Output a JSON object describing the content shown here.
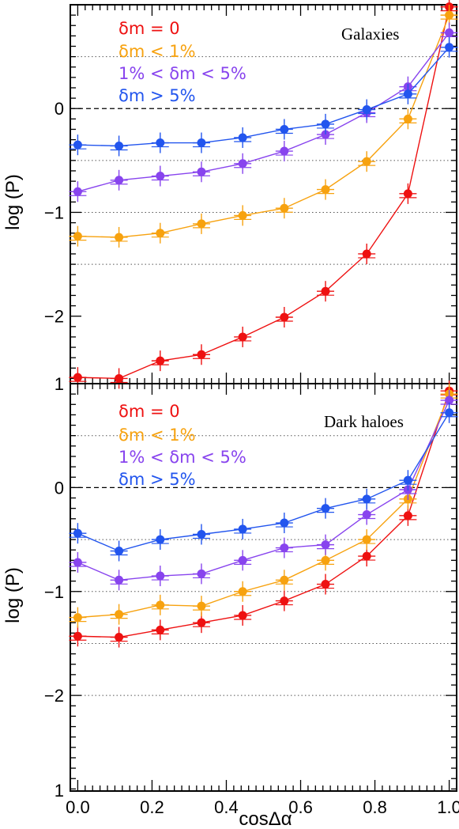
{
  "chart_data": [
    {
      "type": "line",
      "title": "Galaxies",
      "xlabel": "cosΔα",
      "ylabel": "log (P)",
      "xlim": [
        -0.02,
        1.02
      ],
      "ylim": [
        -2.65,
        1.0
      ],
      "yticks": [
        -2,
        -1,
        0
      ],
      "reference_lines": {
        "dashed": [
          0
        ],
        "dotted": [
          0.5,
          -0.5,
          -1,
          -1.5
        ]
      },
      "legend_position": "top-left",
      "x": [
        0.0,
        0.111,
        0.222,
        0.333,
        0.444,
        0.556,
        0.667,
        0.778,
        0.889,
        1.0
      ],
      "series": [
        {
          "name": "δm = 0",
          "color": "#ee1111",
          "values": [
            -2.59,
            -2.6,
            -2.43,
            -2.37,
            -2.2,
            -2.01,
            -1.76,
            -1.4,
            -0.82,
            0.98
          ]
        },
        {
          "name": "δm < 1%",
          "color": "#f7a20f",
          "values": [
            -1.23,
            -1.24,
            -1.2,
            -1.11,
            -1.03,
            -0.96,
            -0.78,
            -0.51,
            -0.1,
            0.9
          ]
        },
        {
          "name": "1% < δm < 5%",
          "color": "#8844ee",
          "values": [
            -0.8,
            -0.69,
            -0.65,
            -0.61,
            -0.53,
            -0.41,
            -0.25,
            -0.04,
            0.21,
            0.73
          ]
        },
        {
          "name": "δm > 5%",
          "color": "#2255ee",
          "values": [
            -0.35,
            -0.36,
            -0.33,
            -0.33,
            -0.28,
            -0.2,
            -0.15,
            -0.01,
            0.14,
            0.59
          ]
        }
      ]
    },
    {
      "type": "line",
      "title": "Dark haloes",
      "xlabel": "cosΔα",
      "ylabel": "log (P)",
      "xlim": [
        -0.02,
        1.02
      ],
      "ylim": [
        -2.92,
        1.0
      ],
      "yticks": [
        -2,
        -1,
        0,
        1
      ],
      "reference_lines": {
        "dashed": [
          0
        ],
        "dotted": [
          0.5,
          -0.5,
          -1,
          -1.5,
          -2
        ]
      },
      "legend_position": "top-left",
      "x": [
        0.0,
        0.111,
        0.222,
        0.333,
        0.444,
        0.556,
        0.667,
        0.778,
        0.889,
        1.0
      ],
      "series": [
        {
          "name": "δm = 0",
          "color": "#ee1111",
          "values": [
            -1.43,
            -1.44,
            -1.37,
            -1.3,
            -1.23,
            -1.09,
            -0.93,
            -0.66,
            -0.27,
            0.93
          ]
        },
        {
          "name": "δm < 1%",
          "color": "#f7a20f",
          "values": [
            -1.25,
            -1.22,
            -1.13,
            -1.14,
            -1.0,
            -0.89,
            -0.7,
            -0.5,
            -0.11,
            0.9
          ]
        },
        {
          "name": "1% < δm < 5%",
          "color": "#8844ee",
          "values": [
            -0.72,
            -0.89,
            -0.85,
            -0.83,
            -0.7,
            -0.58,
            -0.55,
            -0.26,
            -0.02,
            0.84
          ]
        },
        {
          "name": "δm > 5%",
          "color": "#2255ee",
          "values": [
            -0.44,
            -0.61,
            -0.5,
            -0.45,
            -0.4,
            -0.34,
            -0.2,
            -0.11,
            0.07,
            0.72
          ]
        }
      ]
    }
  ],
  "x_tick_labels": [
    "0.0",
    "0.2",
    "0.4",
    "0.6",
    "0.8",
    "1.0"
  ],
  "bottom_y_label": "1"
}
